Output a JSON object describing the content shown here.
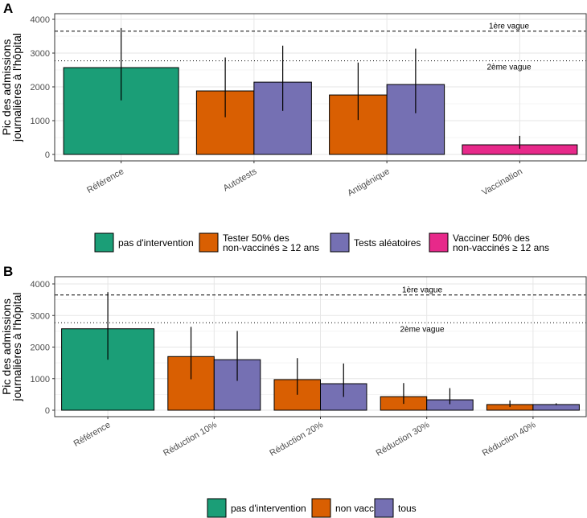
{
  "chart_data": [
    {
      "panel": "A",
      "type": "bar",
      "ylabel": [
        "Pic des admissions",
        "journalières à l'hôpital"
      ],
      "ylim": [
        0,
        4000
      ],
      "yticks": [
        0,
        1000,
        2000,
        3000,
        4000
      ],
      "grid": true,
      "categories": [
        "Référence",
        "Autotests",
        "Antigénique",
        "Vaccination"
      ],
      "hlines": [
        {
          "label": "1ère vague",
          "value": 3650,
          "style": "dashed"
        },
        {
          "label": "2ème vague",
          "value": 2770,
          "style": "dotted"
        }
      ],
      "legend": {
        "position": "bottom",
        "items": [
          {
            "label": [
              "pas d'intervention"
            ],
            "color": "#1b9e77"
          },
          {
            "label": [
              "Tester 50% des",
              "non-vaccinés ≥ 12 ans"
            ],
            "color": "#d95f02"
          },
          {
            "label": [
              "Tests aléatoires"
            ],
            "color": "#7570b3"
          },
          {
            "label": [
              "Vacciner 50% des",
              "non-vaccinés ≥ 12 ans"
            ],
            "color": "#e7298a"
          }
        ]
      },
      "bars": [
        [
          {
            "series": 0,
            "value": 2570,
            "low": 1600,
            "high": 3740
          }
        ],
        [
          {
            "series": 1,
            "value": 1880,
            "low": 1100,
            "high": 2870
          },
          {
            "series": 2,
            "value": 2140,
            "low": 1290,
            "high": 3220
          }
        ],
        [
          {
            "series": 1,
            "value": 1760,
            "low": 1020,
            "high": 2720
          },
          {
            "series": 2,
            "value": 2070,
            "low": 1220,
            "high": 3130
          }
        ],
        [
          {
            "series": 3,
            "value": 285,
            "low": 170,
            "high": 550
          }
        ]
      ]
    },
    {
      "panel": "B",
      "type": "bar",
      "ylabel": [
        "Pic des admissions",
        "journalières à l'hôpital"
      ],
      "ylim": [
        0,
        4000
      ],
      "yticks": [
        0,
        1000,
        2000,
        3000,
        4000
      ],
      "grid": true,
      "categories": [
        "Référence",
        "Réduction  10%",
        "Réduction  20%",
        "Réduction  30%",
        "Réduction  40%"
      ],
      "hlines": [
        {
          "label": "1ère vague",
          "value": 3650,
          "style": "dashed"
        },
        {
          "label": "2ème vague",
          "value": 2770,
          "style": "dotted"
        }
      ],
      "legend": {
        "position": "bottom",
        "items": [
          {
            "label": [
              "pas d'intervention"
            ],
            "color": "#1b9e77"
          },
          {
            "label": [
              "non vaccinés"
            ],
            "color": "#d95f02"
          },
          {
            "label": [
              "tous"
            ],
            "color": "#7570b3"
          }
        ]
      },
      "bars": [
        [
          {
            "series": 0,
            "value": 2580,
            "low": 1600,
            "high": 3740
          }
        ],
        [
          {
            "series": 1,
            "value": 1700,
            "low": 980,
            "high": 2640
          },
          {
            "series": 2,
            "value": 1600,
            "low": 930,
            "high": 2510
          }
        ],
        [
          {
            "series": 1,
            "value": 970,
            "low": 490,
            "high": 1650
          },
          {
            "series": 2,
            "value": 840,
            "low": 420,
            "high": 1480
          }
        ],
        [
          {
            "series": 1,
            "value": 430,
            "low": 200,
            "high": 860
          },
          {
            "series": 2,
            "value": 330,
            "low": 190,
            "high": 700
          }
        ],
        [
          {
            "series": 1,
            "value": 180,
            "low": 100,
            "high": 310
          },
          {
            "series": 2,
            "value": 180,
            "low": 160,
            "high": 220
          }
        ]
      ]
    }
  ]
}
